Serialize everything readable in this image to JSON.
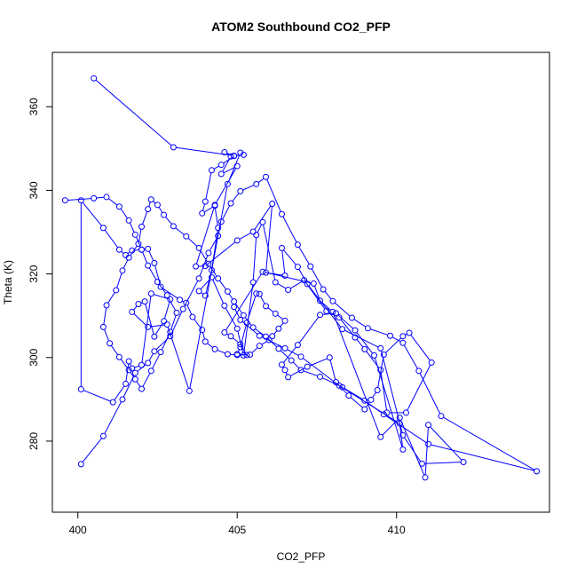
{
  "chart_data": {
    "type": "line",
    "title": "ATOM2 Southbound CO2_PFP",
    "xlabel": "CO2_PFP",
    "ylabel": "Theta (K)",
    "xlim": [
      399.2,
      414.8
    ],
    "ylim": [
      263.0,
      373.0
    ],
    "xticks": [
      400,
      405,
      410
    ],
    "yticks": [
      280,
      300,
      320,
      340,
      360
    ],
    "xtick_labels": [
      "400",
      "405",
      "410"
    ],
    "ytick_labels": [
      "280",
      "300",
      "320",
      "340",
      "360"
    ],
    "grid": false,
    "legend": "none",
    "line_color": "#0000ff",
    "marker": "open-circle",
    "series": [
      {
        "x": [
          400.5,
          403.0,
          404.9,
          404.6,
          404.8,
          404.5,
          405.0,
          404.3,
          403.7,
          404.0,
          405.0,
          405.5,
          406.1,
          405.9,
          406.5,
          406.4,
          406.9,
          407.2,
          408.3,
          409.5,
          410.2,
          410.8,
          412.1,
          411.0,
          410.9,
          410.1,
          409.5,
          408.0,
          407.6,
          407.4,
          405.8,
          404.6,
          404.8,
          405.1,
          405.3,
          405.0,
          405.1,
          405.3,
          405.6,
          405.7,
          405.9,
          406.2,
          406.5,
          406.3,
          406.1,
          406.0,
          405.7,
          405.4,
          405.0,
          404.7,
          404.3,
          404.0,
          403.9,
          403.6,
          403.4,
          403.2,
          402.6,
          402.4,
          402.2,
          402.0,
          401.7,
          401.5,
          401.3,
          400.8,
          400.1,
          400.1,
          401.1,
          401.5,
          401.6,
          401.7,
          402.0,
          402.3,
          402.9,
          402.7,
          402.4,
          402.1,
          401.9,
          401.7,
          402.2,
          402.8,
          403.5,
          404.7,
          405.1,
          405.2,
          404.9,
          404.5,
          404.2,
          404.0,
          403.9,
          404.3,
          404.4,
          404.2,
          404.0,
          403.8,
          404.2,
          404.6,
          405.0,
          405.2,
          405.5,
          405.6,
          405.8,
          406.2,
          406.6,
          407.1,
          407.8,
          408.2,
          408.7,
          409.0,
          409.5,
          409.7,
          410.3,
          411.1,
          410.4,
          410.2,
          409.6,
          409.4,
          409.2,
          409.0,
          408.5,
          408.1,
          407.9,
          407.2,
          406.6,
          406.5,
          406.4,
          406.9,
          407.6,
          408.1,
          408.7,
          409.3,
          410.2,
          410.1,
          408.2,
          407.0,
          406.5,
          405.7,
          405.1,
          404.9
        ],
        "y": [
          366.8,
          350.3,
          348.3,
          349.1,
          348.1,
          343.9,
          345.8,
          336.5,
          321.8,
          321.9,
          328.0,
          330.1,
          336.8,
          320.3,
          319.6,
          326.2,
          321.7,
          317.6,
          306.8,
          302.2,
          281.4,
          274.6,
          275.0,
          283.9,
          271.3,
          285.6,
          281.0,
          310.9,
          313.6,
          317.7,
          320.5,
          306.0,
          305.1,
          303.2,
          300.6,
          300.8,
          302.5,
          308.3,
          315.3,
          315.2,
          312.3,
          310.5,
          308.8,
          306.9,
          305.1,
          304.2,
          302.8,
          300.7,
          300.6,
          300.8,
          302.0,
          303.8,
          306.6,
          309.7,
          313.1,
          313.8,
          316.9,
          322.6,
          326.0,
          325.8,
          325.6,
          324.5,
          325.8,
          331.0,
          337.6,
          292.4,
          289.3,
          293.7,
          299.1,
          297.4,
          298.2,
          315.3,
          313.9,
          308.7,
          305.0,
          313.4,
          312.8,
          310.9,
          307.3,
          307.9,
          292.0,
          341.5,
          349.0,
          348.5,
          348.2,
          346.1,
          344.8,
          337.3,
          334.5,
          336.3,
          331.0,
          320.9,
          314.8,
          315.9,
          319.2,
          312.4,
          306.9,
          300.5,
          318.0,
          329.3,
          332.4,
          318.0,
          316.2,
          318.5,
          311.1,
          309.6,
          304.8,
          302.0,
          297.0,
          286.8,
          286.8,
          298.8,
          305.9,
          305.1,
          300.7,
          292.2,
          289.9,
          287.6,
          290.9,
          294.1,
          300.0,
          297.8,
          295.3,
          297.0,
          298.3,
          303.0,
          310.2,
          310.6,
          306.5,
          300.5,
          278.0,
          284.2,
          293.3,
          300.2,
          302.2,
          305.2,
          309.0,
          312.1
        ]
      },
      {
        "x": [
          400.1,
          400.8,
          401.4,
          401.8,
          402.2,
          402.4,
          402.9,
          403.3,
          403.8,
          404.1,
          404.4,
          404.5,
          404.8,
          405.1,
          405.6,
          405.9,
          406.4,
          406.9,
          407.3,
          407.7,
          408.0,
          408.6,
          409.1,
          409.8,
          410.2,
          410.7,
          411.4,
          414.4,
          411.0,
          409.6,
          409.0,
          408.3,
          407.6,
          407.0,
          406.7,
          406.3,
          405.9,
          405.5,
          405.2,
          404.9,
          404.7,
          404.4,
          404.1,
          403.8,
          403.4,
          403.0,
          402.7,
          402.5,
          402.3,
          402.2,
          402.0,
          401.9,
          401.6,
          401.4,
          401.2,
          400.9,
          400.8,
          401.0,
          401.3,
          401.6,
          401.8,
          402.0,
          402.3,
          402.6,
          402.9,
          403.1,
          402.8,
          402.5,
          402.2,
          402.0,
          401.8,
          401.6,
          401.3,
          400.9,
          400.5,
          399.6
        ],
        "y": [
          274.5,
          281.2,
          290.0,
          296.3,
          298.7,
          301.5,
          305.1,
          311.6,
          318.9,
          325.0,
          329.1,
          332.5,
          336.9,
          339.8,
          341.5,
          343.2,
          334.3,
          327.0,
          321.8,
          316.3,
          313.5,
          309.5,
          307.0,
          305.2,
          303.5,
          296.8,
          286.0,
          272.8,
          279.3,
          286.4,
          289.7,
          292.9,
          295.4,
          297.0,
          299.3,
          302.1,
          305.0,
          307.2,
          310.1,
          313.4,
          315.8,
          318.9,
          322.4,
          326.2,
          329.0,
          331.4,
          334.1,
          336.5,
          337.8,
          335.5,
          331.3,
          327.2,
          323.9,
          320.8,
          316.1,
          312.5,
          307.3,
          303.4,
          300.1,
          297.0,
          294.8,
          292.5,
          296.8,
          301.3,
          306.1,
          310.7,
          314.9,
          318.1,
          322.0,
          325.8,
          329.4,
          332.8,
          336.1,
          338.4,
          338.1,
          337.6
        ]
      }
    ]
  }
}
